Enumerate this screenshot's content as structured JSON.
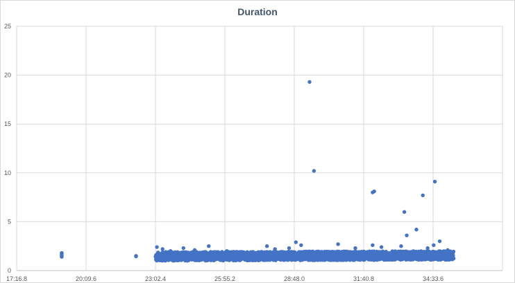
{
  "chart_data": {
    "type": "scatter",
    "title": "Duration",
    "xlabel": "",
    "ylabel": "",
    "x_tick_labels": [
      "17:16.8",
      "20:09.6",
      "23:02.4",
      "25:55.2",
      "28:48.0",
      "31:40.8",
      "34:33.6"
    ],
    "xlim": [
      "17:16.8",
      "37:26.4"
    ],
    "ylim": [
      0,
      25
    ],
    "y_tick_labels": [
      "0",
      "5",
      "10",
      "15",
      "20",
      "25"
    ],
    "grid": true,
    "legend": "none",
    "point_color": "#4472c4",
    "gridline_color": "#d9d9d9",
    "series": [
      {
        "values_note": "",
        "points": [
          {
            "x": "19:09.0",
            "y": 1.8
          },
          {
            "x": "19:09.0",
            "y": 1.7
          },
          {
            "x": "19:09.0",
            "y": 1.6
          },
          {
            "x": "19:09.0",
            "y": 1.5
          },
          {
            "x": "19:09.0",
            "y": 1.4
          },
          {
            "x": "22:14.0",
            "y": 1.5
          },
          {
            "x": "22:14.0",
            "y": 1.45
          },
          {
            "x": "23:06.0",
            "y": 2.4
          },
          {
            "x": "23:20.0",
            "y": 2.2
          },
          {
            "x": "23:40.0",
            "y": 2.0
          },
          {
            "x": "24:12.0",
            "y": 2.3
          },
          {
            "x": "24:40.0",
            "y": 2.1
          },
          {
            "x": "25:15.0",
            "y": 2.5
          },
          {
            "x": "26:00.0",
            "y": 2.0
          },
          {
            "x": "27:00.0",
            "y": 1.9
          },
          {
            "x": "27:40.0",
            "y": 2.5
          },
          {
            "x": "28:00.0",
            "y": 2.2
          },
          {
            "x": "28:35.0",
            "y": 2.3
          },
          {
            "x": "28:52.0",
            "y": 2.9
          },
          {
            "x": "29:05.0",
            "y": 2.6
          },
          {
            "x": "29:26.0",
            "y": 19.3
          },
          {
            "x": "29:37.0",
            "y": 10.2
          },
          {
            "x": "30:37.0",
            "y": 2.7
          },
          {
            "x": "31:20.0",
            "y": 2.3
          },
          {
            "x": "32:03.0",
            "y": 8.0
          },
          {
            "x": "32:07.0",
            "y": 8.1
          },
          {
            "x": "32:03.0",
            "y": 2.6
          },
          {
            "x": "32:25.0",
            "y": 2.4
          },
          {
            "x": "33:14.0",
            "y": 2.5
          },
          {
            "x": "33:22.0",
            "y": 6.0
          },
          {
            "x": "33:28.0",
            "y": 3.6
          },
          {
            "x": "33:52.0",
            "y": 4.2
          },
          {
            "x": "34:08.0",
            "y": 7.7
          },
          {
            "x": "34:20.0",
            "y": 2.3
          },
          {
            "x": "34:38.0",
            "y": 9.1
          },
          {
            "x": "34:35.0",
            "y": 2.6
          },
          {
            "x": "34:50.0",
            "y": 3.0
          },
          {
            "x": "35:10.0",
            "y": 2.1
          }
        ],
        "dense_band": {
          "x_start": "23:02.4",
          "x_end": "35:25.0",
          "y_min": 1.0,
          "y_max": 1.9
        }
      }
    ]
  }
}
